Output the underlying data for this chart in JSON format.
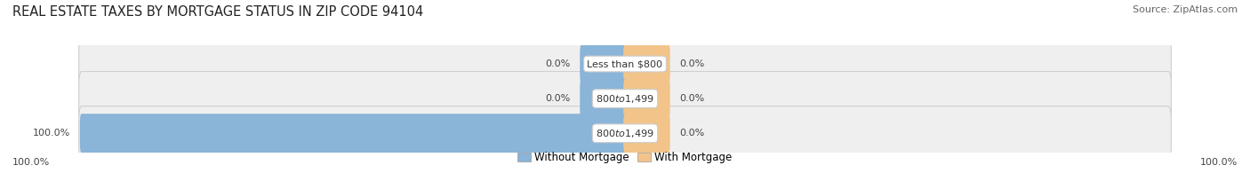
{
  "title": "REAL ESTATE TAXES BY MORTGAGE STATUS IN ZIP CODE 94104",
  "source": "Source: ZipAtlas.com",
  "rows": [
    {
      "label": "Less than $800",
      "without_mortgage": 0.0,
      "with_mortgage": 0.0
    },
    {
      "label": "$800 to $1,499",
      "without_mortgage": 0.0,
      "with_mortgage": 0.0
    },
    {
      "label": "$800 to $1,499",
      "without_mortgage": 100.0,
      "with_mortgage": 0.0
    }
  ],
  "color_without": "#8ab4d8",
  "color_with": "#f2c48a",
  "bar_bg_face": "#efefef",
  "bar_bg_edge": "#d0d0d0",
  "left_axis_label": "100.0%",
  "right_axis_label": "100.0%",
  "legend_without": "Without Mortgage",
  "legend_with": "With Mortgage",
  "title_fontsize": 10.5,
  "source_fontsize": 8,
  "tick_fontsize": 8,
  "label_fontsize": 8,
  "pct_fontsize": 8
}
